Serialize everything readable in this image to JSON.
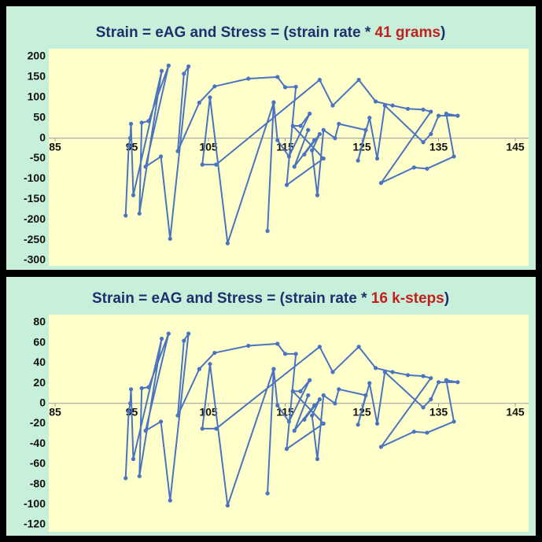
{
  "chart_data": [
    {
      "type": "line",
      "title_parts": [
        {
          "text": "Strain = eAG and Stress = (strain rate * ",
          "color": "#1f2f6e"
        },
        {
          "text": "41 grams",
          "color": "#c0201e"
        },
        {
          "text": ")",
          "color": "#1f2f6e"
        }
      ],
      "x": [
        94.2,
        94.6,
        94.8,
        94.9,
        95.2,
        98.9,
        96.0,
        96.3,
        97.2,
        99.8,
        96.8,
        98.8,
        100.0,
        102.4,
        101.8,
        101.0,
        103.8,
        105.8,
        110.2,
        114.0,
        115.0,
        116.4,
        115.2,
        120.0,
        116.0,
        117.0,
        118.2,
        115.5,
        114.0,
        113.5,
        112.7,
        113.5,
        107.5,
        105.2,
        104.2,
        106.0,
        119.5,
        121.2,
        124.6,
        126.8,
        129.0,
        131.0,
        133.0,
        134.0,
        127.5,
        131.8,
        133.5,
        137.0,
        136.0,
        137.5,
        135.0,
        134.0,
        133.0,
        128.0,
        127.0,
        126.0,
        124.5,
        125.5,
        122.0,
        121.5,
        120.0,
        119.2,
        118.5,
        119.5,
        117.5,
        118.8,
        116.2,
        118.0
      ],
      "series": [
        {
          "color": "#4a73c0",
          "values": [
            -190,
            -20,
            0,
            35,
            -140,
            165,
            -185,
            38,
            42,
            178,
            -70,
            -45,
            -247,
            176,
            158,
            -32,
            87,
            127,
            146,
            150,
            125,
            126,
            -115,
            -50,
            30,
            30,
            60,
            -45,
            -5,
            88,
            -228,
            87,
            -258,
            100,
            -65,
            -65,
            143,
            80,
            143,
            90,
            80,
            72,
            70,
            65,
            -110,
            -72,
            -75,
            -45,
            60,
            55,
            55,
            10,
            -10,
            80,
            -50,
            50,
            -55,
            20,
            35,
            0,
            20,
            -140,
            -30,
            10,
            -40,
            -5,
            -70,
            20
          ]
        }
      ],
      "xlim": [
        85,
        145
      ],
      "xticks": [
        85,
        95,
        105,
        115,
        125,
        135,
        145
      ],
      "ylim": [
        -300,
        200
      ],
      "yticks": [
        -300,
        -250,
        -200,
        -150,
        -100,
        -50,
        0,
        50,
        100,
        150,
        200
      ]
    },
    {
      "type": "line",
      "title_parts": [
        {
          "text": "Strain = eAG and Stress = (strain rate * ",
          "color": "#1f2f6e"
        },
        {
          "text": "16 k-steps",
          "color": "#c0201e"
        },
        {
          "text": ")",
          "color": "#1f2f6e"
        }
      ],
      "x": [
        94.2,
        94.6,
        94.8,
        94.9,
        95.2,
        98.9,
        96.0,
        96.3,
        97.2,
        99.8,
        96.8,
        98.8,
        100.0,
        102.4,
        101.8,
        101.0,
        103.8,
        105.8,
        110.2,
        114.0,
        115.0,
        116.4,
        115.2,
        120.0,
        116.0,
        117.0,
        118.2,
        115.5,
        114.0,
        113.5,
        112.7,
        113.5,
        107.5,
        105.2,
        104.2,
        106.0,
        119.5,
        121.2,
        124.6,
        126.8,
        129.0,
        131.0,
        133.0,
        134.0,
        127.5,
        131.8,
        133.5,
        137.0,
        136.0,
        137.5,
        135.0,
        134.0,
        133.0,
        128.0,
        127.0,
        126.0,
        124.5,
        125.5,
        122.0,
        121.5,
        120.0,
        119.2,
        118.5,
        119.5,
        117.5,
        118.8,
        116.2,
        118.0
      ],
      "series": [
        {
          "color": "#4a73c0",
          "values": [
            -74,
            -8,
            0,
            14,
            -55,
            64,
            -72,
            15,
            16,
            69,
            -27,
            -18,
            -96,
            69,
            62,
            -12,
            34,
            50,
            57,
            59,
            49,
            49,
            -45,
            -20,
            12,
            12,
            23,
            -18,
            -2,
            34,
            -89,
            34,
            -101,
            39,
            -25,
            -25,
            56,
            31,
            56,
            35,
            31,
            28,
            27,
            25,
            -43,
            -28,
            -29,
            -18,
            23,
            21,
            21,
            4,
            -4,
            31,
            -20,
            20,
            -21,
            8,
            14,
            0,
            8,
            -55,
            -12,
            4,
            -16,
            -2,
            -27,
            8
          ]
        }
      ],
      "xlim": [
        85,
        145
      ],
      "xticks": [
        85,
        95,
        105,
        115,
        125,
        135,
        145
      ],
      "ylim": [
        -120,
        80
      ],
      "yticks": [
        -120,
        -100,
        -80,
        -60,
        -40,
        -20,
        0,
        20,
        40,
        60,
        80
      ]
    }
  ]
}
